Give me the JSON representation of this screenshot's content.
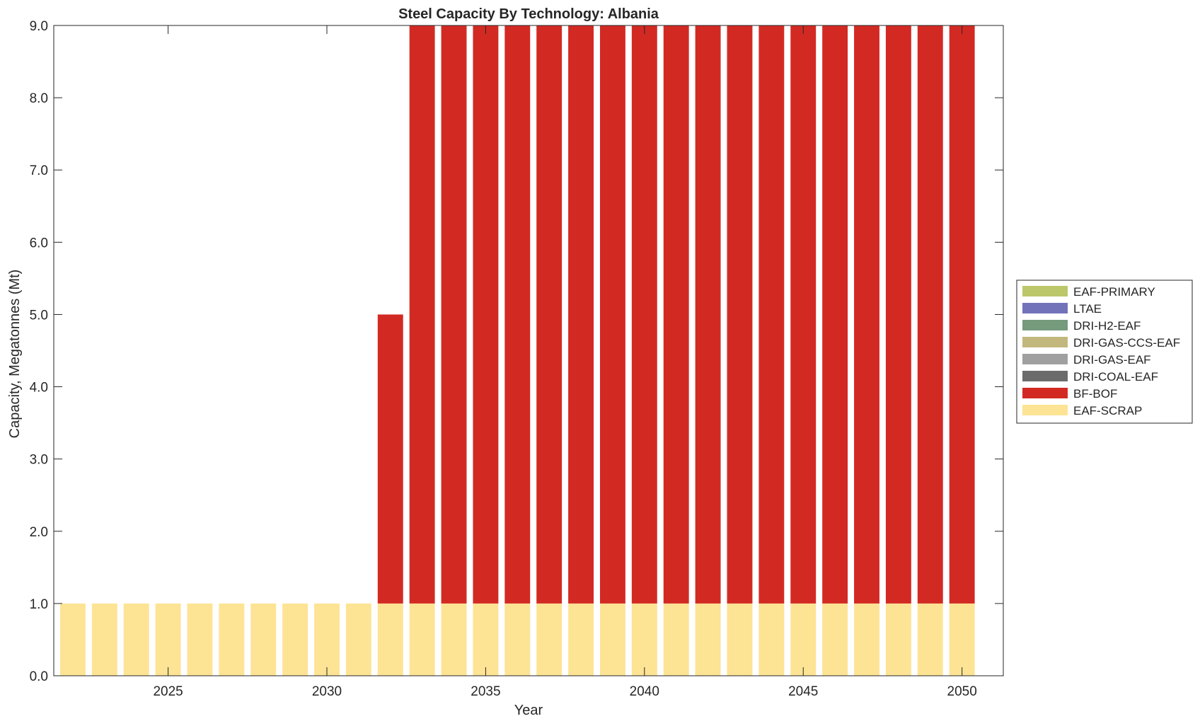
{
  "chart_data": {
    "type": "bar",
    "stacked": true,
    "title": "Steel Capacity By Technology: Albania",
    "xlabel": "Year",
    "ylabel": "Capacity, Megatonnes (Mt)",
    "x": [
      2022,
      2023,
      2024,
      2025,
      2026,
      2027,
      2028,
      2029,
      2030,
      2031,
      2032,
      2033,
      2034,
      2035,
      2036,
      2037,
      2038,
      2039,
      2040,
      2041,
      2042,
      2043,
      2044,
      2045,
      2046,
      2047,
      2048,
      2049,
      2050
    ],
    "xlim": [
      2021.4,
      2051.3
    ],
    "ylim": [
      0,
      9
    ],
    "xticks": [
      2025,
      2030,
      2035,
      2040,
      2045,
      2050
    ],
    "yticks": [
      0,
      1,
      2,
      3,
      4,
      5,
      6,
      7,
      8,
      9
    ],
    "ytick_labels": [
      "0.0",
      "1.0",
      "2.0",
      "3.0",
      "4.0",
      "5.0",
      "6.0",
      "7.0",
      "8.0",
      "9.0"
    ],
    "grid": false,
    "legend_position": "outside-right",
    "legend_order": [
      "EAF-PRIMARY",
      "LTAE",
      "DRI-H2-EAF",
      "DRI-GAS-CCS-EAF",
      "DRI-GAS-EAF",
      "DRI-COAL-EAF",
      "BF-BOF",
      "EAF-SCRAP"
    ],
    "series": [
      {
        "name": "EAF-SCRAP",
        "color": "#fde394",
        "values": [
          1,
          1,
          1,
          1,
          1,
          1,
          1,
          1,
          1,
          1,
          1,
          1,
          1,
          1,
          1,
          1,
          1,
          1,
          1,
          1,
          1,
          1,
          1,
          1,
          1,
          1,
          1,
          1,
          1
        ]
      },
      {
        "name": "BF-BOF",
        "color": "#d22a23",
        "values": [
          0,
          0,
          0,
          0,
          0,
          0,
          0,
          0,
          0,
          0,
          4,
          8,
          8,
          8,
          8,
          8,
          8,
          8,
          8,
          8,
          8,
          8,
          8,
          8,
          8,
          8,
          8,
          8,
          8
        ]
      },
      {
        "name": "DRI-COAL-EAF",
        "color": "#6b6b6b",
        "values": [
          0,
          0,
          0,
          0,
          0,
          0,
          0,
          0,
          0,
          0,
          0,
          0,
          0,
          0,
          0,
          0,
          0,
          0,
          0,
          0,
          0,
          0,
          0,
          0,
          0,
          0,
          0,
          0,
          0
        ]
      },
      {
        "name": "DRI-GAS-EAF",
        "color": "#a0a0a0",
        "values": [
          0,
          0,
          0,
          0,
          0,
          0,
          0,
          0,
          0,
          0,
          0,
          0,
          0,
          0,
          0,
          0,
          0,
          0,
          0,
          0,
          0,
          0,
          0,
          0,
          0,
          0,
          0,
          0,
          0
        ]
      },
      {
        "name": "DRI-GAS-CCS-EAF",
        "color": "#c2b77c",
        "values": [
          0,
          0,
          0,
          0,
          0,
          0,
          0,
          0,
          0,
          0,
          0,
          0,
          0,
          0,
          0,
          0,
          0,
          0,
          0,
          0,
          0,
          0,
          0,
          0,
          0,
          0,
          0,
          0,
          0
        ]
      },
      {
        "name": "DRI-H2-EAF",
        "color": "#759a7c",
        "values": [
          0,
          0,
          0,
          0,
          0,
          0,
          0,
          0,
          0,
          0,
          0,
          0,
          0,
          0,
          0,
          0,
          0,
          0,
          0,
          0,
          0,
          0,
          0,
          0,
          0,
          0,
          0,
          0,
          0
        ]
      },
      {
        "name": "LTAE",
        "color": "#7272bb",
        "values": [
          0,
          0,
          0,
          0,
          0,
          0,
          0,
          0,
          0,
          0,
          0,
          0,
          0,
          0,
          0,
          0,
          0,
          0,
          0,
          0,
          0,
          0,
          0,
          0,
          0,
          0,
          0,
          0,
          0
        ]
      },
      {
        "name": "EAF-PRIMARY",
        "color": "#bcc76a",
        "values": [
          0,
          0,
          0,
          0,
          0,
          0,
          0,
          0,
          0,
          0,
          0,
          0,
          0,
          0,
          0,
          0,
          0,
          0,
          0,
          0,
          0,
          0,
          0,
          0,
          0,
          0,
          0,
          0,
          0
        ]
      }
    ]
  }
}
